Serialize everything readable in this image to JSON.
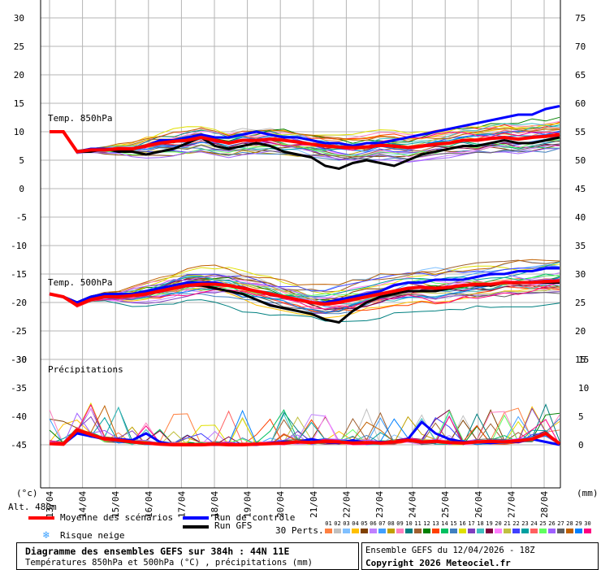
{
  "chart_data": {
    "type": "line",
    "title": "Diagramme des ensembles GEFS sur 384h : 44N 11E",
    "subtitle": "Températures 850hPa et 500hPa (°C) , précipitations (mm)",
    "run_info": "Ensemble GEFS du 12/04/2026 - 18Z",
    "copyright": "Copyright 2026 Meteociel.fr",
    "altitude_label": "Alt. 480m",
    "left_unit": "(°c)",
    "right_unit": "(mm)",
    "x_ticks": [
      "13/04",
      "14/04",
      "15/04",
      "16/04",
      "17/04",
      "18/04",
      "19/04",
      "20/04",
      "21/04",
      "22/04",
      "23/04",
      "24/04",
      "25/04",
      "26/04",
      "27/04",
      "28/04"
    ],
    "panels": {
      "t850": {
        "label": "Temp. 850hPa",
        "ylim_left": [
          0,
          30
        ],
        "left_ticks": [
          0,
          5,
          10,
          15,
          20,
          25,
          30
        ],
        "right_ticks": [
          50,
          55,
          60,
          65,
          70,
          75
        ],
        "mean": [
          10,
          10,
          6.5,
          6.8,
          6.8,
          7,
          7,
          7.5,
          8,
          8.3,
          8.5,
          9,
          8.5,
          8,
          8.5,
          8.5,
          8.7,
          8.5,
          8.2,
          7.8,
          7.5,
          7.3,
          7.2,
          7.3,
          7.6,
          7.5,
          7.2,
          7.5,
          7.8,
          8,
          8.5,
          8.5,
          8.8,
          9,
          8.7,
          9,
          9.2,
          9.5
        ],
        "control": [
          10,
          10,
          6.5,
          7,
          7,
          7,
          7,
          7.5,
          8.5,
          8.5,
          9,
          9.5,
          9,
          9,
          9.5,
          10,
          9.5,
          9,
          9,
          8.5,
          8,
          8,
          7.5,
          8,
          8,
          8.5,
          9,
          9.5,
          10,
          10.5,
          11,
          11.5,
          12,
          12.5,
          13,
          13,
          14,
          14.5
        ],
        "gfs": [
          10,
          10,
          6.5,
          6.5,
          7,
          6.5,
          6.5,
          6,
          6.5,
          7,
          8,
          9,
          7.5,
          7,
          7.5,
          8,
          7.5,
          6.5,
          6,
          5.5,
          4,
          3.5,
          4.5,
          5,
          4.5,
          4,
          5,
          6,
          6.5,
          7,
          7.5,
          7.5,
          8,
          8.5,
          8,
          8,
          8.5,
          9
        ]
      },
      "t500": {
        "label": "Temp. 500hPa",
        "ylim_left": [
          -30,
          0
        ],
        "left_ticks": [
          -30,
          -25,
          -20,
          -15,
          -10,
          -5,
          0
        ],
        "right_ticks": [
          15,
          20,
          25,
          30,
          35,
          40,
          45
        ],
        "mean": [
          -18.5,
          -19,
          -20.5,
          -19.5,
          -19,
          -19,
          -18.8,
          -18.5,
          -18,
          -17.5,
          -17,
          -16.8,
          -16.8,
          -17,
          -17.5,
          -18,
          -18.5,
          -19,
          -19.5,
          -20,
          -20.3,
          -20,
          -19.5,
          -19,
          -18.5,
          -18,
          -17.5,
          -17.3,
          -17.5,
          -17.3,
          -17,
          -16.8,
          -16.8,
          -16.5,
          -16.5,
          -16.5,
          -16.3,
          -16.2
        ],
        "control": [
          -18.5,
          -19,
          -20,
          -19,
          -18.5,
          -18.5,
          -18.5,
          -18,
          -17.5,
          -17,
          -16.5,
          -16.5,
          -16.5,
          -17,
          -17.5,
          -18,
          -18.5,
          -19,
          -19.5,
          -20,
          -20,
          -19.5,
          -19,
          -18.5,
          -18,
          -17,
          -16.5,
          -16.5,
          -16,
          -16,
          -16,
          -15.5,
          -15,
          -15,
          -14.5,
          -14.5,
          -14,
          -14
        ],
        "gfs": [
          -18.5,
          -19,
          -20,
          -19,
          -18.5,
          -18.5,
          -18.5,
          -18,
          -18,
          -17.5,
          -17,
          -17,
          -17.5,
          -18,
          -18.5,
          -19.5,
          -20.5,
          -21,
          -21.5,
          -22,
          -23,
          -23.5,
          -21.5,
          -20,
          -19,
          -18.5,
          -18,
          -18,
          -18,
          -17.5,
          -17,
          -17,
          -17,
          -16.5,
          -16.5,
          -16.5,
          -16.5,
          -16.5
        ]
      },
      "precip": {
        "label": "Précipitations",
        "ylim_right": [
          0,
          15
        ],
        "right_ticks": [
          0,
          5,
          10,
          15
        ],
        "mean": [
          0.2,
          0.1,
          2.6,
          1.8,
          1.0,
          0.8,
          0.5,
          0.3,
          0.1,
          0,
          0,
          0,
          0.1,
          0,
          0,
          0.1,
          0.2,
          0.3,
          0.5,
          0.4,
          0.6,
          0.5,
          0.3,
          0.4,
          0.3,
          0.5,
          0.8,
          0.5,
          0.6,
          0.4,
          0.3,
          0.5,
          0.6,
          0.5,
          0.7,
          1.0,
          2.0,
          0.2
        ],
        "control": [
          0.2,
          0.1,
          2.0,
          1.5,
          1.0,
          1.0,
          0.8,
          2.0,
          0.5,
          0,
          0,
          0,
          0,
          0,
          0,
          0,
          0.3,
          0.5,
          0.5,
          1.0,
          0.5,
          0.3,
          0.8,
          0.3,
          0.5,
          0.5,
          1.0,
          4.0,
          2.0,
          1.0,
          0.5,
          0.5,
          0.3,
          0.5,
          0.5,
          1.0,
          0.5,
          0
        ]
      }
    },
    "legend": {
      "mean": "Moyenne des scénarios",
      "control": "Run de contrôle",
      "gfs": "Run GFS",
      "snow": "Risque neige",
      "perts": "30 Perts.",
      "pert_ids": [
        "01",
        "02",
        "03",
        "04",
        "05",
        "06",
        "07",
        "08",
        "09",
        "10",
        "11",
        "12",
        "13",
        "14",
        "15",
        "16",
        "17",
        "18",
        "19",
        "20",
        "21",
        "22",
        "23",
        "24",
        "25",
        "26",
        "27",
        "28",
        "29",
        "30"
      ]
    },
    "colors": {
      "mean": "#ff0000",
      "control": "#0000ff",
      "gfs": "#000000",
      "grid": "#b4b4b4",
      "perts": [
        "#ff8040",
        "#c0c0c0",
        "#80c0ff",
        "#ffc000",
        "#804000",
        "#c080ff",
        "#40a0ff",
        "#c0a000",
        "#ff80c0",
        "#008080",
        "#a06030",
        "#008000",
        "#ff4000",
        "#00c060",
        "#4080c0",
        "#e0e000",
        "#8040c0",
        "#40c0c0",
        "#800040",
        "#ff80ff",
        "#c0c040",
        "#4040ff",
        "#00a0a0",
        "#ff6060",
        "#60ff60",
        "#a060ff",
        "#606060",
        "#c06000",
        "#0080ff",
        "#ff0080"
      ]
    }
  }
}
